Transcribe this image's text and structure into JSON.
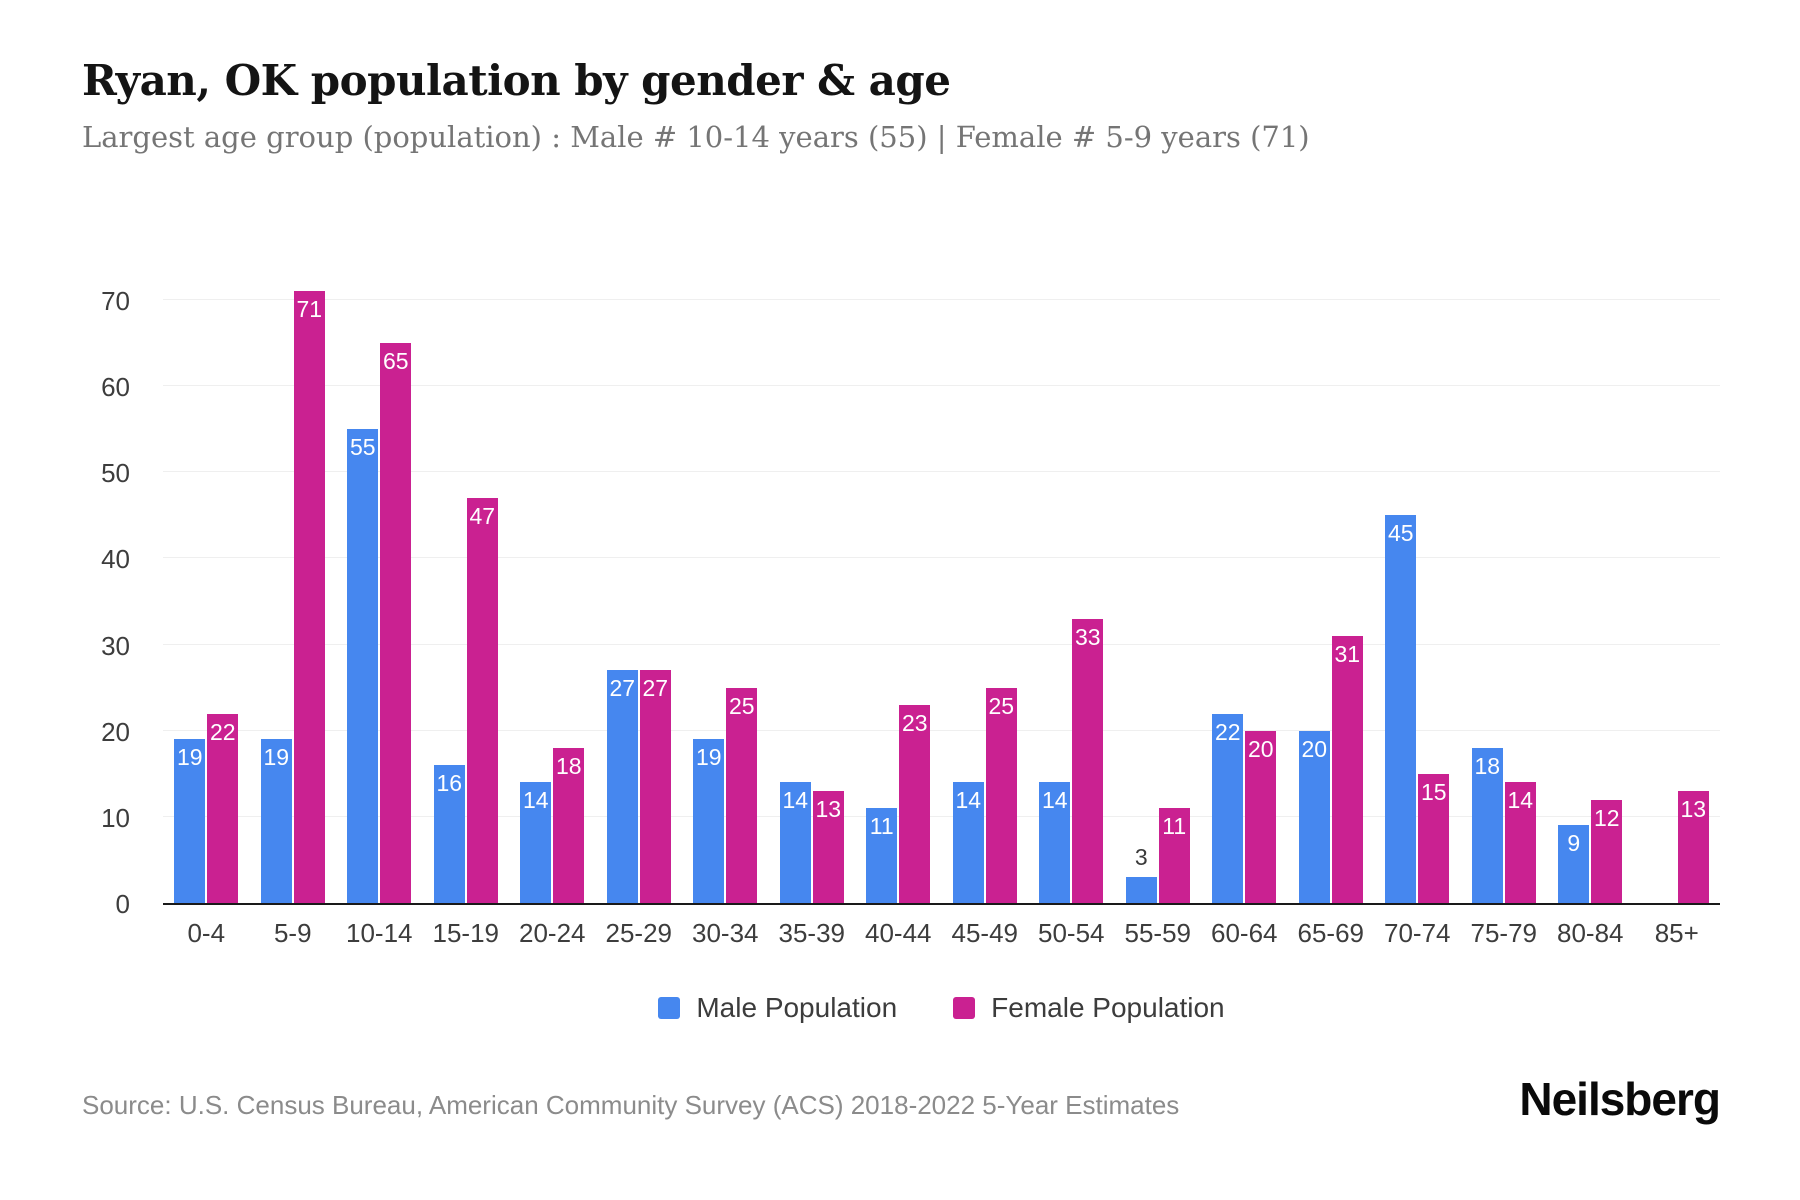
{
  "header": {
    "title": "Ryan, OK population by gender & age",
    "subtitle": "Largest age group (population) : Male # 10-14 years (55) | Female # 5-9 years (71)"
  },
  "chart_data": {
    "type": "bar",
    "title": "Ryan, OK population by gender & age",
    "categories": [
      "0-4",
      "5-9",
      "10-14",
      "15-19",
      "20-24",
      "25-29",
      "30-34",
      "35-39",
      "40-44",
      "45-49",
      "50-54",
      "55-59",
      "60-64",
      "65-69",
      "70-74",
      "75-79",
      "80-84",
      "85+"
    ],
    "series": [
      {
        "name": "Male Population",
        "color": "#4687ef",
        "values": [
          19,
          19,
          55,
          16,
          14,
          27,
          19,
          14,
          11,
          14,
          14,
          3,
          22,
          20,
          45,
          18,
          9,
          0
        ]
      },
      {
        "name": "Female Population",
        "color": "#ca2191",
        "values": [
          22,
          71,
          65,
          47,
          18,
          27,
          25,
          13,
          23,
          25,
          33,
          11,
          20,
          31,
          15,
          14,
          12,
          13
        ]
      }
    ],
    "xlabel": "",
    "ylabel": "",
    "ylim": [
      0,
      70
    ],
    "yticks": [
      0,
      10,
      20,
      30,
      40,
      50,
      60,
      70
    ],
    "grid": true,
    "legend_position": "bottom",
    "value_labels": "shown, white inside bar top; dark above bar when bar too short; hidden when value is 0"
  },
  "colors": {
    "male": "#4687ef",
    "female": "#ca2191",
    "gridline": "#efefef",
    "axis_line": "#1a1a1a",
    "tick_label": "#3d3d3d",
    "title": "#141414",
    "subtitle": "#757575",
    "source": "#8b8b8b"
  },
  "footer": {
    "source": "Source: U.S. Census Bureau, American Community Survey (ACS) 2018-2022 5-Year Estimates",
    "brand": "Neilsberg"
  }
}
